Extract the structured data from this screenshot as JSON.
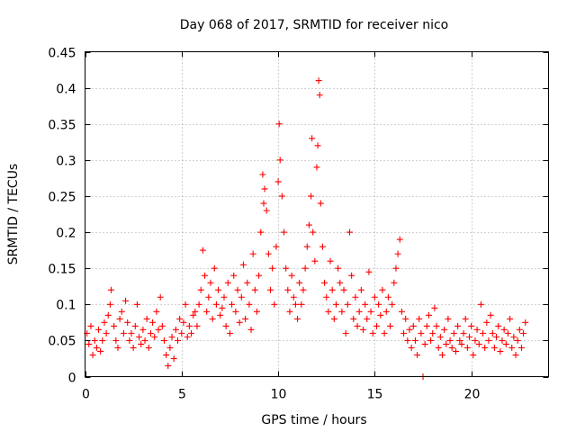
{
  "chart_data": {
    "type": "scatter",
    "title": "Day 068 of 2017, SRMTID for receiver nico",
    "xlabel": "GPS time / hours",
    "ylabel": "SRMTID / TECUs",
    "xlim": [
      0,
      24
    ],
    "ylim": [
      0,
      0.45
    ],
    "xticks": [
      0,
      5,
      10,
      15,
      20
    ],
    "yticks": [
      0,
      0.05,
      0.1,
      0.15,
      0.2,
      0.25,
      0.3,
      0.35,
      0.4,
      0.45
    ],
    "xtick_labels": [
      "0",
      "5",
      "10",
      "15",
      "20"
    ],
    "ytick_labels": [
      "0",
      "0.05",
      "0.1",
      "0.15",
      "0.2",
      "0.25",
      "0.3",
      "0.35",
      "0.4",
      "0.45"
    ],
    "grid": true,
    "marker": "+",
    "color": "#ff0000",
    "x_range_observed": [
      0.0,
      22.8
    ],
    "series": [
      {
        "name": "SRMTID",
        "points": [
          [
            0.1,
            0.06
          ],
          [
            0.2,
            0.045
          ],
          [
            0.3,
            0.07
          ],
          [
            0.4,
            0.03
          ],
          [
            0.5,
            0.05
          ],
          [
            0.6,
            0.04
          ],
          [
            0.7,
            0.065
          ],
          [
            0.8,
            0.035
          ],
          [
            0.9,
            0.05
          ],
          [
            1.0,
            0.075
          ],
          [
            1.1,
            0.06
          ],
          [
            1.2,
            0.085
          ],
          [
            1.3,
            0.1
          ],
          [
            1.35,
            0.12
          ],
          [
            1.5,
            0.07
          ],
          [
            1.6,
            0.05
          ],
          [
            1.7,
            0.04
          ],
          [
            1.8,
            0.08
          ],
          [
            1.9,
            0.09
          ],
          [
            2.0,
            0.06
          ],
          [
            2.1,
            0.105
          ],
          [
            2.2,
            0.075
          ],
          [
            2.3,
            0.05
          ],
          [
            2.4,
            0.06
          ],
          [
            2.5,
            0.04
          ],
          [
            2.6,
            0.07
          ],
          [
            2.7,
            0.1
          ],
          [
            2.8,
            0.055
          ],
          [
            2.9,
            0.045
          ],
          [
            3.0,
            0.065
          ],
          [
            3.1,
            0.05
          ],
          [
            3.2,
            0.08
          ],
          [
            3.3,
            0.04
          ],
          [
            3.4,
            0.06
          ],
          [
            3.5,
            0.075
          ],
          [
            3.6,
            0.055
          ],
          [
            3.7,
            0.09
          ],
          [
            3.8,
            0.065
          ],
          [
            3.9,
            0.11
          ],
          [
            4.0,
            0.07
          ],
          [
            4.1,
            0.05
          ],
          [
            4.2,
            0.03
          ],
          [
            4.3,
            0.015
          ],
          [
            4.4,
            0.04
          ],
          [
            4.5,
            0.055
          ],
          [
            4.6,
            0.025
          ],
          [
            4.7,
            0.065
          ],
          [
            4.8,
            0.05
          ],
          [
            4.9,
            0.08
          ],
          [
            5.0,
            0.06
          ],
          [
            5.1,
            0.075
          ],
          [
            5.2,
            0.1
          ],
          [
            5.3,
            0.055
          ],
          [
            5.4,
            0.07
          ],
          [
            5.5,
            0.06
          ],
          [
            5.6,
            0.085
          ],
          [
            5.7,
            0.09
          ],
          [
            5.8,
            0.07
          ],
          [
            5.9,
            0.1
          ],
          [
            6.0,
            0.12
          ],
          [
            6.1,
            0.175
          ],
          [
            6.2,
            0.14
          ],
          [
            6.3,
            0.09
          ],
          [
            6.4,
            0.11
          ],
          [
            6.5,
            0.13
          ],
          [
            6.6,
            0.08
          ],
          [
            6.7,
            0.15
          ],
          [
            6.8,
            0.1
          ],
          [
            6.9,
            0.12
          ],
          [
            7.0,
            0.085
          ],
          [
            7.1,
            0.095
          ],
          [
            7.2,
            0.11
          ],
          [
            7.3,
            0.07
          ],
          [
            7.4,
            0.13
          ],
          [
            7.5,
            0.06
          ],
          [
            7.6,
            0.1
          ],
          [
            7.7,
            0.14
          ],
          [
            7.8,
            0.09
          ],
          [
            7.9,
            0.12
          ],
          [
            8.0,
            0.075
          ],
          [
            8.1,
            0.11
          ],
          [
            8.2,
            0.155
          ],
          [
            8.3,
            0.08
          ],
          [
            8.4,
            0.13
          ],
          [
            8.5,
            0.1
          ],
          [
            8.6,
            0.065
          ],
          [
            8.7,
            0.17
          ],
          [
            8.8,
            0.12
          ],
          [
            8.9,
            0.09
          ],
          [
            9.0,
            0.14
          ],
          [
            9.1,
            0.2
          ],
          [
            9.2,
            0.28
          ],
          [
            9.25,
            0.24
          ],
          [
            9.3,
            0.26
          ],
          [
            9.4,
            0.23
          ],
          [
            9.5,
            0.17
          ],
          [
            9.6,
            0.12
          ],
          [
            9.7,
            0.15
          ],
          [
            9.8,
            0.1
          ],
          [
            9.9,
            0.18
          ],
          [
            10.0,
            0.27
          ],
          [
            10.05,
            0.35
          ],
          [
            10.1,
            0.3
          ],
          [
            10.2,
            0.25
          ],
          [
            10.3,
            0.2
          ],
          [
            10.4,
            0.15
          ],
          [
            10.5,
            0.12
          ],
          [
            10.6,
            0.09
          ],
          [
            10.7,
            0.14
          ],
          [
            10.8,
            0.11
          ],
          [
            10.9,
            0.1
          ],
          [
            11.0,
            0.08
          ],
          [
            11.1,
            0.13
          ],
          [
            11.2,
            0.1
          ],
          [
            11.3,
            0.12
          ],
          [
            11.4,
            0.15
          ],
          [
            11.5,
            0.18
          ],
          [
            11.6,
            0.21
          ],
          [
            11.7,
            0.25
          ],
          [
            11.75,
            0.33
          ],
          [
            11.8,
            0.2
          ],
          [
            11.9,
            0.16
          ],
          [
            12.0,
            0.29
          ],
          [
            12.05,
            0.32
          ],
          [
            12.1,
            0.41
          ],
          [
            12.15,
            0.39
          ],
          [
            12.2,
            0.24
          ],
          [
            12.3,
            0.18
          ],
          [
            12.4,
            0.13
          ],
          [
            12.5,
            0.11
          ],
          [
            12.6,
            0.09
          ],
          [
            12.7,
            0.16
          ],
          [
            12.8,
            0.12
          ],
          [
            12.9,
            0.08
          ],
          [
            13.0,
            0.1
          ],
          [
            13.1,
            0.15
          ],
          [
            13.2,
            0.13
          ],
          [
            13.3,
            0.09
          ],
          [
            13.4,
            0.12
          ],
          [
            13.5,
            0.06
          ],
          [
            13.6,
            0.1
          ],
          [
            13.7,
            0.2
          ],
          [
            13.8,
            0.14
          ],
          [
            13.9,
            0.08
          ],
          [
            14.0,
            0.11
          ],
          [
            14.1,
            0.07
          ],
          [
            14.2,
            0.09
          ],
          [
            14.3,
            0.12
          ],
          [
            14.4,
            0.065
          ],
          [
            14.5,
            0.1
          ],
          [
            14.6,
            0.08
          ],
          [
            14.7,
            0.145
          ],
          [
            14.8,
            0.09
          ],
          [
            14.9,
            0.06
          ],
          [
            15.0,
            0.11
          ],
          [
            15.1,
            0.07
          ],
          [
            15.2,
            0.1
          ],
          [
            15.3,
            0.085
          ],
          [
            15.4,
            0.12
          ],
          [
            15.5,
            0.06
          ],
          [
            15.6,
            0.09
          ],
          [
            15.7,
            0.11
          ],
          [
            15.8,
            0.07
          ],
          [
            15.9,
            0.1
          ],
          [
            16.0,
            0.13
          ],
          [
            16.1,
            0.15
          ],
          [
            16.2,
            0.17
          ],
          [
            16.3,
            0.19
          ],
          [
            16.4,
            0.09
          ],
          [
            16.5,
            0.06
          ],
          [
            16.6,
            0.08
          ],
          [
            16.7,
            0.05
          ],
          [
            16.8,
            0.065
          ],
          [
            16.9,
            0.04
          ],
          [
            17.0,
            0.07
          ],
          [
            17.1,
            0.05
          ],
          [
            17.2,
            0.03
          ],
          [
            17.3,
            0.08
          ],
          [
            17.4,
            0.06
          ],
          [
            17.5,
            0.0
          ],
          [
            17.6,
            0.045
          ],
          [
            17.7,
            0.07
          ],
          [
            17.8,
            0.085
          ],
          [
            17.9,
            0.05
          ],
          [
            18.0,
            0.06
          ],
          [
            18.1,
            0.095
          ],
          [
            18.2,
            0.07
          ],
          [
            18.3,
            0.04
          ],
          [
            18.4,
            0.055
          ],
          [
            18.5,
            0.03
          ],
          [
            18.6,
            0.065
          ],
          [
            18.7,
            0.045
          ],
          [
            18.8,
            0.08
          ],
          [
            18.9,
            0.05
          ],
          [
            19.0,
            0.04
          ],
          [
            19.1,
            0.06
          ],
          [
            19.2,
            0.035
          ],
          [
            19.3,
            0.07
          ],
          [
            19.4,
            0.05
          ],
          [
            19.5,
            0.045
          ],
          [
            19.6,
            0.06
          ],
          [
            19.7,
            0.08
          ],
          [
            19.8,
            0.04
          ],
          [
            19.9,
            0.055
          ],
          [
            20.0,
            0.07
          ],
          [
            20.1,
            0.03
          ],
          [
            20.2,
            0.05
          ],
          [
            20.3,
            0.065
          ],
          [
            20.4,
            0.045
          ],
          [
            20.5,
            0.1
          ],
          [
            20.6,
            0.06
          ],
          [
            20.7,
            0.04
          ],
          [
            20.8,
            0.075
          ],
          [
            20.9,
            0.05
          ],
          [
            21.0,
            0.085
          ],
          [
            21.1,
            0.06
          ],
          [
            21.2,
            0.04
          ],
          [
            21.3,
            0.055
          ],
          [
            21.4,
            0.07
          ],
          [
            21.5,
            0.035
          ],
          [
            21.6,
            0.05
          ],
          [
            21.7,
            0.065
          ],
          [
            21.8,
            0.045
          ],
          [
            21.9,
            0.06
          ],
          [
            22.0,
            0.08
          ],
          [
            22.1,
            0.04
          ],
          [
            22.2,
            0.055
          ],
          [
            22.3,
            0.03
          ],
          [
            22.4,
            0.05
          ],
          [
            22.5,
            0.065
          ],
          [
            22.6,
            0.04
          ],
          [
            22.7,
            0.06
          ],
          [
            22.8,
            0.075
          ]
        ]
      }
    ]
  }
}
